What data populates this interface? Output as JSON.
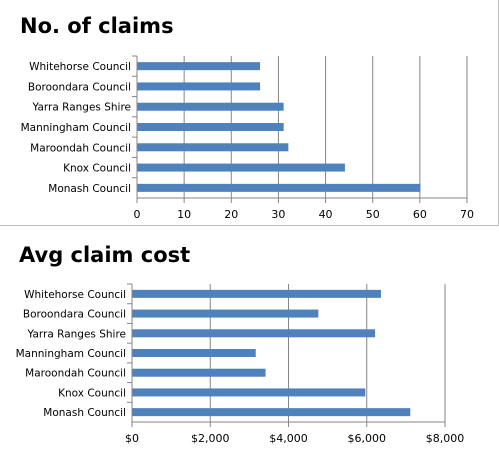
{
  "chart_data": [
    {
      "type": "bar",
      "orientation": "horizontal",
      "title": "No. of claims",
      "categories": [
        "Whitehorse Council",
        "Boroondara Council",
        "Yarra Ranges Shire",
        "Manningham Council",
        "Maroondah Council",
        "Knox Council",
        "Monash Council"
      ],
      "values": [
        26,
        26,
        31,
        31,
        32,
        44,
        60
      ],
      "xlim": [
        0,
        70
      ],
      "ticks": [
        0,
        10,
        20,
        30,
        40,
        50,
        60,
        70
      ],
      "tick_labels": [
        "0",
        "10",
        "20",
        "30",
        "40",
        "50",
        "60",
        "70"
      ],
      "grid": true,
      "bar_color": "#4f81bd",
      "legend": false
    },
    {
      "type": "bar",
      "orientation": "horizontal",
      "title": "Avg claim cost",
      "categories": [
        "Whitehorse Council",
        "Boroondara Council",
        "Yarra Ranges Shire",
        "Manningham Council",
        "Maroondah Council",
        "Knox Council",
        "Monash Council"
      ],
      "values": [
        6350,
        4750,
        6200,
        3150,
        3400,
        5950,
        7100
      ],
      "xlim": [
        0,
        8000
      ],
      "ticks": [
        0,
        2000,
        4000,
        6000,
        8000
      ],
      "tick_labels": [
        "$0",
        "$2,000",
        "$4,000",
        "$6,000",
        "$8,000"
      ],
      "grid": true,
      "bar_color": "#4f81bd",
      "legend": false
    }
  ]
}
